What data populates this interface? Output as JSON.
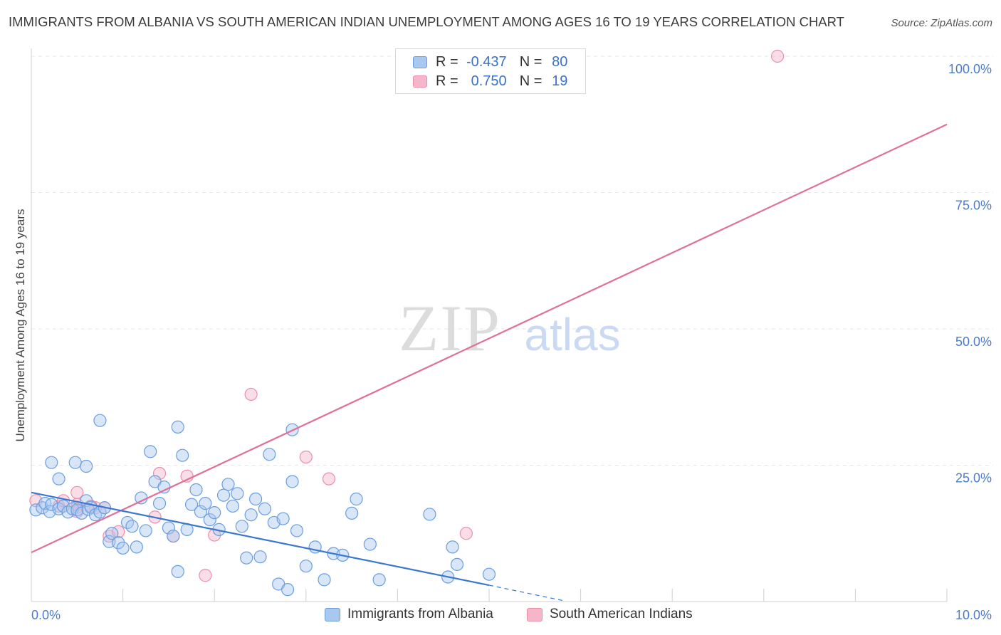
{
  "title": "IMMIGRANTS FROM ALBANIA VS SOUTH AMERICAN INDIAN UNEMPLOYMENT AMONG AGES 16 TO 19 YEARS CORRELATION CHART",
  "source": "Source: ZipAtlas.com",
  "watermark": {
    "zip": "ZIP",
    "atlas": "atlas"
  },
  "legend": {
    "r_label": "R =",
    "n_label": "N =",
    "series": [
      {
        "name": "Immigrants from Albania",
        "r": "-0.437",
        "n": "80"
      },
      {
        "name": "South American Indians",
        "r": "0.750",
        "n": "19"
      }
    ]
  },
  "colors": {
    "blue_fill": "#a9c8ef",
    "blue_stroke": "#6a9ee0",
    "blue_line": "#3a78d0",
    "pink_fill": "#f5b6c9",
    "pink_stroke": "#eb8fab",
    "pink_line": "#e0709a",
    "tick_text": "#4a7cc9",
    "grid": "#e6e6e6"
  },
  "chart_data": {
    "type": "scatter",
    "title": "IMMIGRANTS FROM ALBANIA VS SOUTH AMERICAN INDIAN UNEMPLOYMENT AMONG AGES 16 TO 19 YEARS CORRELATION CHART",
    "xlabel": "",
    "ylabel": "Unemployment Among Ages 16 to 19 years",
    "xlim": [
      0,
      10
    ],
    "ylim": [
      0,
      100
    ],
    "x_tick_labels": [
      {
        "value": 0,
        "label": "0.0%"
      },
      {
        "value": 10,
        "label": "10.0%"
      }
    ],
    "y_tick_labels": [
      {
        "value": 25,
        "label": "25.0%"
      },
      {
        "value": 50,
        "label": "50.0%"
      },
      {
        "value": 75,
        "label": "75.0%"
      },
      {
        "value": 100,
        "label": "100.0%"
      }
    ],
    "grid": true,
    "series": [
      {
        "name": "Immigrants from Albania",
        "r": -0.437,
        "n": 80,
        "points": [
          [
            0.05,
            16.8
          ],
          [
            0.12,
            17.2
          ],
          [
            0.15,
            18.0
          ],
          [
            0.2,
            16.5
          ],
          [
            0.22,
            17.8
          ],
          [
            0.3,
            17.0
          ],
          [
            0.35,
            17.5
          ],
          [
            0.4,
            16.4
          ],
          [
            0.45,
            17.0
          ],
          [
            0.5,
            16.8
          ],
          [
            0.55,
            16.2
          ],
          [
            0.6,
            18.5
          ],
          [
            0.62,
            16.9
          ],
          [
            0.65,
            17.3
          ],
          [
            0.7,
            15.9
          ],
          [
            0.75,
            16.4
          ],
          [
            0.8,
            17.2
          ],
          [
            0.22,
            25.5
          ],
          [
            0.3,
            22.5
          ],
          [
            0.48,
            25.5
          ],
          [
            0.6,
            24.8
          ],
          [
            0.75,
            33.2
          ],
          [
            0.85,
            11.0
          ],
          [
            0.88,
            12.5
          ],
          [
            0.95,
            10.8
          ],
          [
            1.0,
            9.8
          ],
          [
            1.05,
            14.5
          ],
          [
            1.1,
            13.8
          ],
          [
            1.15,
            10.0
          ],
          [
            1.2,
            19.0
          ],
          [
            1.25,
            13.0
          ],
          [
            1.3,
            27.5
          ],
          [
            1.35,
            22.0
          ],
          [
            1.4,
            18.0
          ],
          [
            1.45,
            21.0
          ],
          [
            1.5,
            13.5
          ],
          [
            1.55,
            12.0
          ],
          [
            1.6,
            5.5
          ],
          [
            1.6,
            32.0
          ],
          [
            1.65,
            26.8
          ],
          [
            1.7,
            13.2
          ],
          [
            1.75,
            17.8
          ],
          [
            1.8,
            20.5
          ],
          [
            1.85,
            16.5
          ],
          [
            1.9,
            18.0
          ],
          [
            1.95,
            15.0
          ],
          [
            2.0,
            16.3
          ],
          [
            2.05,
            13.2
          ],
          [
            2.1,
            19.5
          ],
          [
            2.15,
            21.5
          ],
          [
            2.2,
            17.5
          ],
          [
            2.25,
            19.8
          ],
          [
            2.3,
            13.8
          ],
          [
            2.35,
            8.0
          ],
          [
            2.4,
            15.9
          ],
          [
            2.45,
            18.8
          ],
          [
            2.5,
            8.2
          ],
          [
            2.55,
            17.0
          ],
          [
            2.6,
            27.0
          ],
          [
            2.65,
            14.5
          ],
          [
            2.7,
            3.2
          ],
          [
            2.75,
            15.2
          ],
          [
            2.8,
            2.2
          ],
          [
            2.85,
            22.0
          ],
          [
            2.85,
            31.5
          ],
          [
            2.9,
            13.0
          ],
          [
            3.0,
            6.5
          ],
          [
            3.1,
            10.0
          ],
          [
            3.2,
            4.0
          ],
          [
            3.3,
            8.8
          ],
          [
            3.4,
            8.5
          ],
          [
            3.5,
            16.2
          ],
          [
            3.55,
            18.8
          ],
          [
            3.7,
            10.5
          ],
          [
            3.8,
            4.0
          ],
          [
            4.35,
            16.0
          ],
          [
            4.55,
            4.5
          ],
          [
            4.6,
            10.0
          ],
          [
            4.65,
            6.8
          ],
          [
            5.0,
            5.0
          ]
        ],
        "trend": {
          "x": [
            0,
            5
          ],
          "y": [
            20.0,
            3.0
          ]
        },
        "trend_extension": {
          "x": [
            5,
            5.8
          ],
          "y": [
            3.0,
            0.2
          ]
        }
      },
      {
        "name": "South American Indians",
        "r": 0.75,
        "n": 19,
        "points": [
          [
            0.05,
            18.5
          ],
          [
            0.3,
            17.5
          ],
          [
            0.5,
            17.3
          ],
          [
            0.7,
            17.2
          ],
          [
            0.5,
            17.8
          ],
          [
            0.35,
            18.5
          ],
          [
            0.5,
            16.5
          ],
          [
            0.5,
            20.0
          ],
          [
            0.65,
            17.5
          ],
          [
            0.8,
            17.2
          ],
          [
            0.85,
            12.0
          ],
          [
            0.95,
            12.8
          ],
          [
            1.35,
            15.5
          ],
          [
            1.4,
            23.5
          ],
          [
            1.55,
            12.0
          ],
          [
            1.7,
            23.0
          ],
          [
            1.9,
            4.8
          ],
          [
            2.0,
            12.2
          ],
          [
            2.4,
            38.0
          ]
        ],
        "trend": {
          "x": [
            0,
            10
          ],
          "y": [
            9.0,
            87.5
          ]
        }
      }
    ]
  }
}
